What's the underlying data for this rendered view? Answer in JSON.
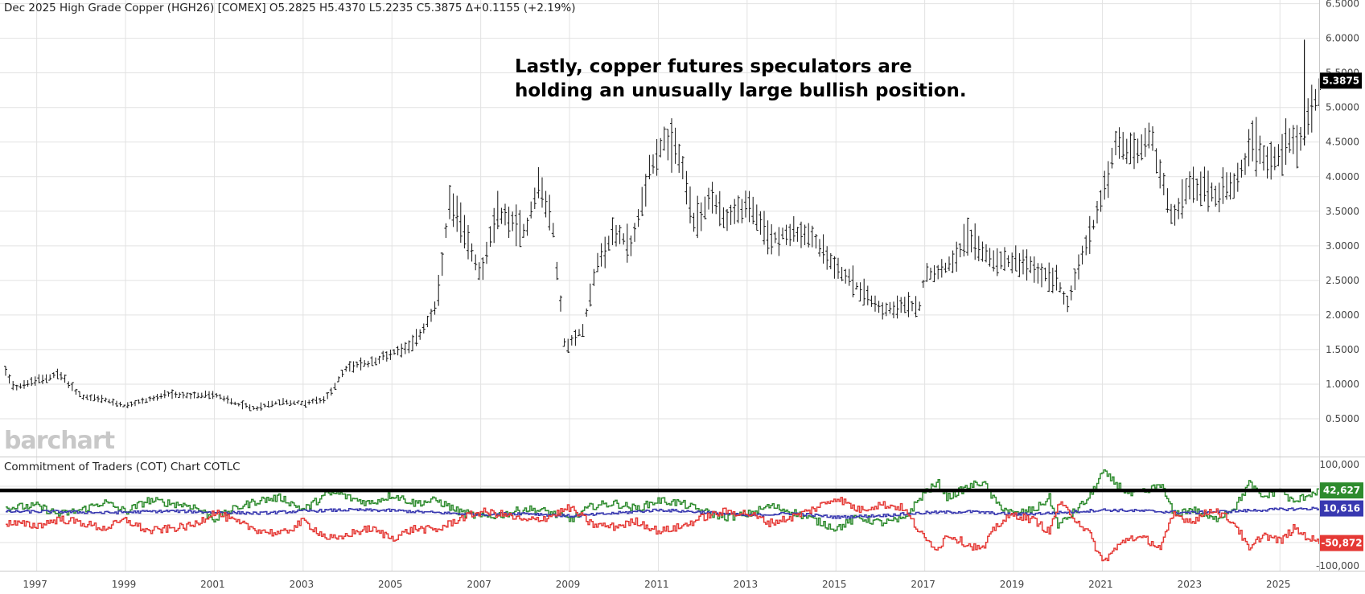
{
  "header": {
    "title": "Dec 2025 High Grade Copper (HGH26) [COMEX] O5.2825 H5.4370 L5.2235 C5.3875 Δ+0.1155 (+2.19%)"
  },
  "annotation": {
    "line1": "Lastly, copper futures speculators are",
    "line2": "holding an unusually large bullish position."
  },
  "logo": {
    "text": "barchart"
  },
  "cot_panel": {
    "title": "Commitment of Traders (COT) Chart  COTLC"
  },
  "colors": {
    "price": "#111111",
    "commercials": "#e53935",
    "large_specs": "#2e8b2e",
    "small_specs": "#3838b0",
    "grid": "#e2e2e2",
    "threshold": "#000000"
  },
  "chart_data": [
    {
      "type": "ohlc",
      "title": "",
      "x_ticks": [
        "1997",
        "1999",
        "2001",
        "2003",
        "2005",
        "2007",
        "2009",
        "2011",
        "2013",
        "2015",
        "2017",
        "2019",
        "2021",
        "2023",
        "2025"
      ],
      "y_ticks": [
        "0.5000",
        "1.0000",
        "1.5000",
        "2.0000",
        "2.5000",
        "3.0000",
        "3.5000",
        "4.0000",
        "4.5000",
        "5.0000",
        "5.5000",
        "6.0000",
        "6.5000"
      ],
      "ylim": [
        0.0,
        6.6
      ],
      "last_price_label": "5.3875",
      "anchors": [
        [
          1996.3,
          1.2
        ],
        [
          1996.5,
          0.95
        ],
        [
          1997.0,
          1.05
        ],
        [
          1997.5,
          1.15
        ],
        [
          1998.0,
          0.82
        ],
        [
          1998.5,
          0.78
        ],
        [
          1999.0,
          0.68
        ],
        [
          1999.5,
          0.78
        ],
        [
          2000.0,
          0.85
        ],
        [
          2000.5,
          0.83
        ],
        [
          2001.0,
          0.85
        ],
        [
          2001.5,
          0.72
        ],
        [
          2001.9,
          0.65
        ],
        [
          2002.5,
          0.75
        ],
        [
          2003.0,
          0.72
        ],
        [
          2003.5,
          0.78
        ],
        [
          2004.0,
          1.25
        ],
        [
          2004.5,
          1.3
        ],
        [
          2005.0,
          1.45
        ],
        [
          2005.5,
          1.6
        ],
        [
          2006.0,
          2.1
        ],
        [
          2006.3,
          3.6
        ],
        [
          2006.5,
          3.4
        ],
        [
          2007.0,
          2.6
        ],
        [
          2007.4,
          3.5
        ],
        [
          2008.0,
          3.2
        ],
        [
          2008.3,
          3.9
        ],
        [
          2008.6,
          3.4
        ],
        [
          2008.9,
          1.5
        ],
        [
          2009.3,
          1.8
        ],
        [
          2009.6,
          2.7
        ],
        [
          2010.0,
          3.2
        ],
        [
          2010.4,
          3.0
        ],
        [
          2010.8,
          4.1
        ],
        [
          2011.1,
          4.5
        ],
        [
          2011.5,
          4.3
        ],
        [
          2011.8,
          3.3
        ],
        [
          2012.2,
          3.7
        ],
        [
          2012.5,
          3.4
        ],
        [
          2013.0,
          3.6
        ],
        [
          2013.5,
          3.1
        ],
        [
          2014.0,
          3.2
        ],
        [
          2014.5,
          3.1
        ],
        [
          2015.0,
          2.7
        ],
        [
          2015.5,
          2.4
        ],
        [
          2016.0,
          2.1
        ],
        [
          2016.9,
          2.15
        ],
        [
          2017.0,
          2.6
        ],
        [
          2017.5,
          2.7
        ],
        [
          2018.0,
          3.15
        ],
        [
          2018.5,
          2.8
        ],
        [
          2019.0,
          2.8
        ],
        [
          2019.5,
          2.65
        ],
        [
          2020.0,
          2.5
        ],
        [
          2020.2,
          2.15
        ],
        [
          2020.5,
          2.75
        ],
        [
          2020.9,
          3.5
        ],
        [
          2021.3,
          4.45
        ],
        [
          2021.8,
          4.35
        ],
        [
          2022.1,
          4.6
        ],
        [
          2022.4,
          3.8
        ],
        [
          2022.6,
          3.4
        ],
        [
          2023.0,
          3.9
        ],
        [
          2023.5,
          3.75
        ],
        [
          2024.0,
          3.85
        ],
        [
          2024.4,
          4.5
        ],
        [
          2024.8,
          4.2
        ],
        [
          2025.1,
          4.45
        ],
        [
          2025.5,
          4.6
        ],
        [
          2025.7,
          4.9
        ],
        [
          2025.9,
          5.3
        ]
      ],
      "spikes": [
        {
          "x": 2025.55,
          "high": 5.98,
          "low": 4.45
        }
      ]
    },
    {
      "type": "line",
      "title": "",
      "y_ticks": [
        "100,000",
        "-100,000"
      ],
      "ylim": [
        -100000,
        100000
      ],
      "threshold": 42627,
      "series": [
        {
          "name": "",
          "last_label": "42,627",
          "anchors": [
            [
              1996.3,
              12000
            ],
            [
              1997.0,
              15000
            ],
            [
              1997.5,
              0
            ],
            [
              1998.0,
              8000
            ],
            [
              1998.5,
              22000
            ],
            [
              1999.0,
              5000
            ],
            [
              1999.5,
              25000
            ],
            [
              2000.0,
              20000
            ],
            [
              2000.5,
              15000
            ],
            [
              2001.0,
              -8000
            ],
            [
              2001.5,
              12000
            ],
            [
              2002.0,
              25000
            ],
            [
              2002.5,
              30000
            ],
            [
              2003.0,
              8000
            ],
            [
              2003.5,
              35000
            ],
            [
              2003.8,
              38000
            ],
            [
              2004.0,
              30000
            ],
            [
              2004.5,
              20000
            ],
            [
              2005.0,
              35000
            ],
            [
              2005.5,
              20000
            ],
            [
              2006.0,
              25000
            ],
            [
              2006.5,
              5000
            ],
            [
              2007.0,
              -5000
            ],
            [
              2007.5,
              0
            ],
            [
              2008.0,
              10000
            ],
            [
              2008.5,
              5000
            ],
            [
              2009.0,
              -10000
            ],
            [
              2009.5,
              15000
            ],
            [
              2010.0,
              20000
            ],
            [
              2010.5,
              10000
            ],
            [
              2011.0,
              25000
            ],
            [
              2011.5,
              20000
            ],
            [
              2012.0,
              5000
            ],
            [
              2012.5,
              -5000
            ],
            [
              2013.0,
              0
            ],
            [
              2013.5,
              15000
            ],
            [
              2014.0,
              5000
            ],
            [
              2014.5,
              -10000
            ],
            [
              2015.0,
              -25000
            ],
            [
              2015.5,
              -5000
            ],
            [
              2016.0,
              -15000
            ],
            [
              2016.5,
              -10000
            ],
            [
              2017.0,
              40000
            ],
            [
              2017.3,
              55000
            ],
            [
              2017.5,
              30000
            ],
            [
              2018.0,
              50000
            ],
            [
              2018.3,
              58000
            ],
            [
              2018.6,
              20000
            ],
            [
              2019.0,
              0
            ],
            [
              2019.5,
              10000
            ],
            [
              2019.8,
              30000
            ],
            [
              2020.0,
              -20000
            ],
            [
              2020.3,
              0
            ],
            [
              2020.7,
              30000
            ],
            [
              2021.0,
              75000
            ],
            [
              2021.3,
              55000
            ],
            [
              2021.6,
              35000
            ],
            [
              2022.0,
              40000
            ],
            [
              2022.3,
              55000
            ],
            [
              2022.6,
              0
            ],
            [
              2023.0,
              10000
            ],
            [
              2023.5,
              -10000
            ],
            [
              2024.0,
              15000
            ],
            [
              2024.3,
              55000
            ],
            [
              2024.6,
              30000
            ],
            [
              2025.0,
              45000
            ],
            [
              2025.3,
              20000
            ],
            [
              2025.6,
              35000
            ],
            [
              2025.9,
              42627
            ]
          ]
        },
        {
          "name": "",
          "last_label": "10,616",
          "anchors": [
            [
              1996.3,
              5000
            ],
            [
              1997.5,
              5000
            ],
            [
              1998.5,
              3000
            ],
            [
              2000.0,
              6000
            ],
            [
              2001.0,
              4000
            ],
            [
              2002.0,
              2000
            ],
            [
              2003.0,
              6000
            ],
            [
              2004.0,
              8000
            ],
            [
              2005.0,
              7000
            ],
            [
              2006.0,
              3000
            ],
            [
              2007.0,
              0
            ],
            [
              2008.0,
              2000
            ],
            [
              2009.0,
              -3000
            ],
            [
              2010.0,
              2000
            ],
            [
              2011.0,
              8000
            ],
            [
              2012.0,
              4000
            ],
            [
              2013.0,
              -2000
            ],
            [
              2014.0,
              2000
            ],
            [
              2015.0,
              -5000
            ],
            [
              2016.0,
              -2000
            ],
            [
              2017.0,
              3000
            ],
            [
              2018.0,
              5000
            ],
            [
              2019.0,
              0
            ],
            [
              2020.0,
              3000
            ],
            [
              2021.0,
              8000
            ],
            [
              2022.0,
              6000
            ],
            [
              2023.0,
              3000
            ],
            [
              2024.0,
              6000
            ],
            [
              2025.0,
              9000
            ],
            [
              2025.9,
              10616
            ]
          ]
        },
        {
          "name": "",
          "last_label": "-50,872",
          "anchors": [
            [
              1996.3,
              -15000
            ],
            [
              1997.0,
              -20000
            ],
            [
              1997.5,
              -8000
            ],
            [
              1998.0,
              -15000
            ],
            [
              1998.5,
              -25000
            ],
            [
              1999.0,
              -10000
            ],
            [
              1999.5,
              -30000
            ],
            [
              2000.0,
              -25000
            ],
            [
              2000.5,
              -20000
            ],
            [
              2001.0,
              5000
            ],
            [
              2001.5,
              -15000
            ],
            [
              2002.0,
              -28000
            ],
            [
              2002.5,
              -35000
            ],
            [
              2003.0,
              -12000
            ],
            [
              2003.5,
              -40000
            ],
            [
              2003.8,
              -45000
            ],
            [
              2004.0,
              -35000
            ],
            [
              2004.5,
              -25000
            ],
            [
              2005.0,
              -42000
            ],
            [
              2005.5,
              -25000
            ],
            [
              2006.0,
              -28000
            ],
            [
              2006.5,
              -8000
            ],
            [
              2007.0,
              5000
            ],
            [
              2007.5,
              0
            ],
            [
              2008.0,
              -12000
            ],
            [
              2008.5,
              -5000
            ],
            [
              2009.0,
              12000
            ],
            [
              2009.5,
              -18000
            ],
            [
              2010.0,
              -22000
            ],
            [
              2010.5,
              -12000
            ],
            [
              2011.0,
              -30000
            ],
            [
              2011.5,
              -22000
            ],
            [
              2012.0,
              -5000
            ],
            [
              2012.5,
              5000
            ],
            [
              2013.0,
              2000
            ],
            [
              2013.5,
              -15000
            ],
            [
              2014.0,
              -5000
            ],
            [
              2014.5,
              10000
            ],
            [
              2015.0,
              30000
            ],
            [
              2015.5,
              8000
            ],
            [
              2016.0,
              18000
            ],
            [
              2016.5,
              12000
            ],
            [
              2017.0,
              -45000
            ],
            [
              2017.3,
              -60000
            ],
            [
              2017.5,
              -35000
            ],
            [
              2018.0,
              -55000
            ],
            [
              2018.3,
              -62000
            ],
            [
              2018.6,
              -20000
            ],
            [
              2019.0,
              0
            ],
            [
              2019.5,
              -12000
            ],
            [
              2019.8,
              -32000
            ],
            [
              2020.0,
              20000
            ],
            [
              2020.3,
              0
            ],
            [
              2020.7,
              -35000
            ],
            [
              2021.0,
              -85000
            ],
            [
              2021.3,
              -60000
            ],
            [
              2021.6,
              -40000
            ],
            [
              2022.0,
              -45000
            ],
            [
              2022.3,
              -60000
            ],
            [
              2022.6,
              0
            ],
            [
              2023.0,
              -12000
            ],
            [
              2023.5,
              10000
            ],
            [
              2024.0,
              -18000
            ],
            [
              2024.3,
              -65000
            ],
            [
              2024.6,
              -35000
            ],
            [
              2025.0,
              -48000
            ],
            [
              2025.3,
              -25000
            ],
            [
              2025.6,
              -40000
            ],
            [
              2025.9,
              -50872
            ]
          ]
        }
      ]
    }
  ]
}
